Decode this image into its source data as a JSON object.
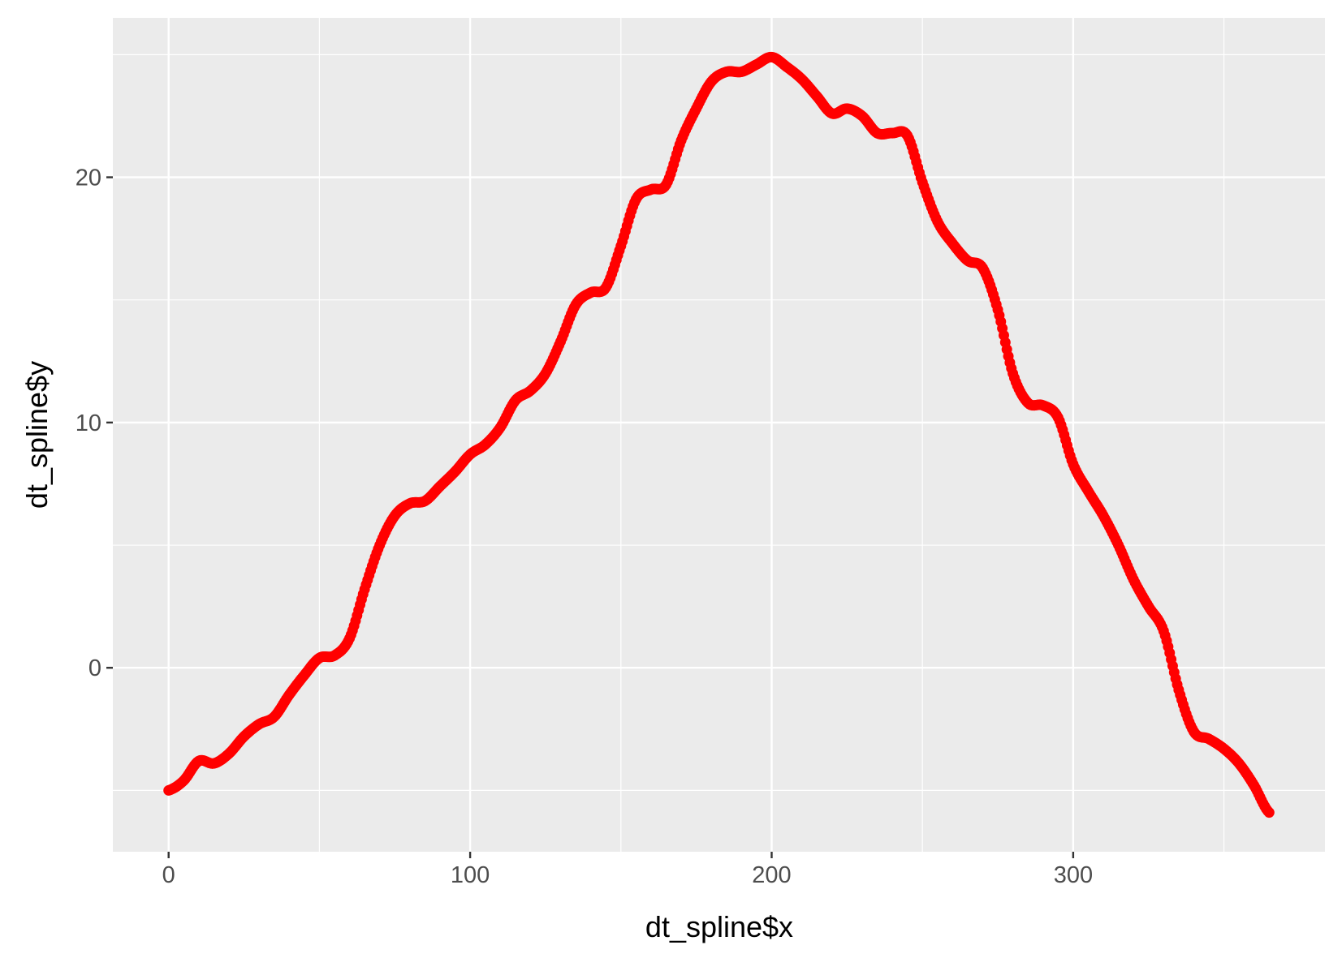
{
  "chart_data": {
    "type": "scatter",
    "xlabel": "dt_spline$x",
    "ylabel": "dt_spline$y",
    "xlim": [
      -18.5,
      383.5
    ],
    "ylim": [
      -7.5,
      26.5
    ],
    "x_ticks": [
      0,
      100,
      200,
      300
    ],
    "x_tick_labels": [
      "0",
      "100",
      "200",
      "300"
    ],
    "y_ticks": [
      0,
      10,
      20
    ],
    "y_tick_labels": [
      "0",
      "10",
      "20"
    ],
    "x_minor_ticks": [
      50,
      150,
      250,
      350
    ],
    "y_minor_ticks": [
      -5,
      5,
      15,
      25
    ],
    "grid": true,
    "panel_color": "#ebebeb",
    "grid_color": "#ffffff",
    "point_color": "#ff0000",
    "series": [
      {
        "x_range": [
          0,
          365
        ],
        "curve": [
          [
            0,
            -5.0
          ],
          [
            5,
            -4.6
          ],
          [
            10,
            -3.8
          ],
          [
            15,
            -3.9
          ],
          [
            20,
            -3.5
          ],
          [
            25,
            -2.8
          ],
          [
            30,
            -2.3
          ],
          [
            35,
            -2.0
          ],
          [
            40,
            -1.1
          ],
          [
            45,
            -0.3
          ],
          [
            50,
            0.4
          ],
          [
            55,
            0.5
          ],
          [
            60,
            1.2
          ],
          [
            65,
            3.2
          ],
          [
            70,
            5.0
          ],
          [
            75,
            6.2
          ],
          [
            80,
            6.7
          ],
          [
            85,
            6.8
          ],
          [
            90,
            7.4
          ],
          [
            95,
            8.0
          ],
          [
            100,
            8.7
          ],
          [
            105,
            9.1
          ],
          [
            110,
            9.8
          ],
          [
            115,
            10.9
          ],
          [
            120,
            11.3
          ],
          [
            125,
            12.0
          ],
          [
            130,
            13.3
          ],
          [
            135,
            14.8
          ],
          [
            140,
            15.3
          ],
          [
            145,
            15.5
          ],
          [
            150,
            17.2
          ],
          [
            155,
            19.1
          ],
          [
            160,
            19.5
          ],
          [
            165,
            19.7
          ],
          [
            170,
            21.5
          ],
          [
            175,
            22.8
          ],
          [
            180,
            23.9
          ],
          [
            185,
            24.3
          ],
          [
            190,
            24.3
          ],
          [
            195,
            24.6
          ],
          [
            200,
            24.9
          ],
          [
            205,
            24.5
          ],
          [
            210,
            24.0
          ],
          [
            215,
            23.3
          ],
          [
            220,
            22.6
          ],
          [
            225,
            22.8
          ],
          [
            230,
            22.5
          ],
          [
            235,
            21.8
          ],
          [
            240,
            21.8
          ],
          [
            245,
            21.7
          ],
          [
            250,
            19.8
          ],
          [
            255,
            18.2
          ],
          [
            260,
            17.3
          ],
          [
            265,
            16.6
          ],
          [
            270,
            16.3
          ],
          [
            275,
            14.6
          ],
          [
            280,
            12.0
          ],
          [
            285,
            10.8
          ],
          [
            290,
            10.7
          ],
          [
            295,
            10.2
          ],
          [
            300,
            8.3
          ],
          [
            305,
            7.2
          ],
          [
            310,
            6.2
          ],
          [
            315,
            5.0
          ],
          [
            320,
            3.6
          ],
          [
            325,
            2.5
          ],
          [
            330,
            1.5
          ],
          [
            335,
            -0.9
          ],
          [
            340,
            -2.6
          ],
          [
            345,
            -2.9
          ],
          [
            350,
            -3.3
          ],
          [
            355,
            -3.9
          ],
          [
            360,
            -4.8
          ],
          [
            365,
            -5.9
          ]
        ]
      }
    ]
  }
}
